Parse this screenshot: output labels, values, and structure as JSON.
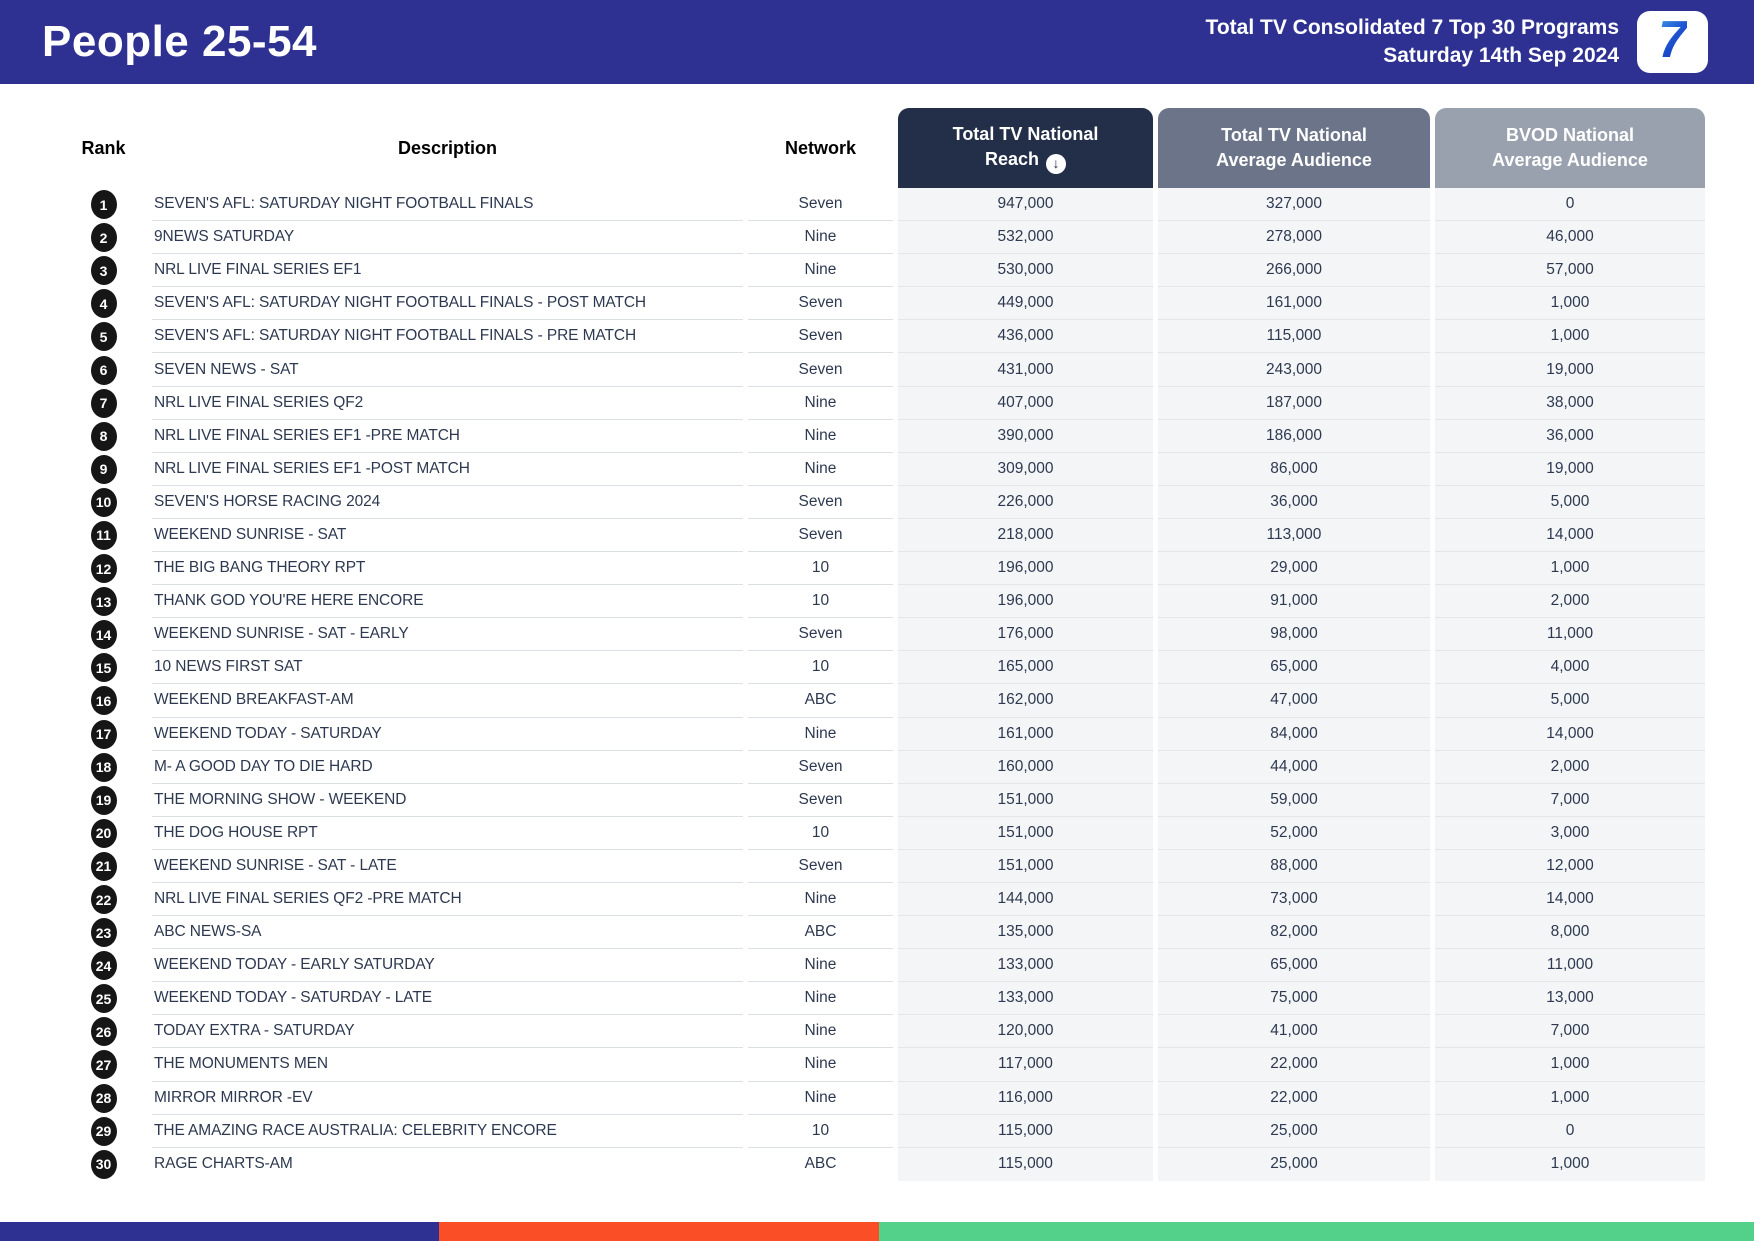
{
  "banner": {
    "title": "People 25-54",
    "subtitle_line1": "Total TV Consolidated 7 Top 30 Programs",
    "subtitle_line2": "Saturday 14th Sep 2024",
    "logo_text": "7"
  },
  "table": {
    "columns": {
      "rank": "Rank",
      "description": "Description",
      "network": "Network",
      "reach_line1": "Total TV National",
      "reach_line2": "Reach",
      "reach_sort_icon": "down-arrow-circle-icon",
      "tv_avg_line1": "Total TV National",
      "tv_avg_line2": "Average Audience",
      "bvod_line1": "BVOD National",
      "bvod_line2": "Average Audience"
    },
    "rows": [
      {
        "rank": "1",
        "description": "SEVEN'S AFL: SATURDAY NIGHT FOOTBALL FINALS",
        "network": "Seven",
        "reach": "947,000",
        "tv_avg": "327,000",
        "bvod_avg": "0"
      },
      {
        "rank": "2",
        "description": "9NEWS SATURDAY",
        "network": "Nine",
        "reach": "532,000",
        "tv_avg": "278,000",
        "bvod_avg": "46,000"
      },
      {
        "rank": "3",
        "description": "NRL LIVE FINAL SERIES EF1",
        "network": "Nine",
        "reach": "530,000",
        "tv_avg": "266,000",
        "bvod_avg": "57,000"
      },
      {
        "rank": "4",
        "description": "SEVEN'S AFL: SATURDAY NIGHT FOOTBALL FINALS - POST MATCH",
        "network": "Seven",
        "reach": "449,000",
        "tv_avg": "161,000",
        "bvod_avg": "1,000"
      },
      {
        "rank": "5",
        "description": "SEVEN'S AFL: SATURDAY NIGHT FOOTBALL FINALS - PRE MATCH",
        "network": "Seven",
        "reach": "436,000",
        "tv_avg": "115,000",
        "bvod_avg": "1,000"
      },
      {
        "rank": "6",
        "description": "SEVEN NEWS - SAT",
        "network": "Seven",
        "reach": "431,000",
        "tv_avg": "243,000",
        "bvod_avg": "19,000"
      },
      {
        "rank": "7",
        "description": "NRL LIVE FINAL SERIES QF2",
        "network": "Nine",
        "reach": "407,000",
        "tv_avg": "187,000",
        "bvod_avg": "38,000"
      },
      {
        "rank": "8",
        "description": "NRL LIVE FINAL SERIES EF1 -PRE MATCH",
        "network": "Nine",
        "reach": "390,000",
        "tv_avg": "186,000",
        "bvod_avg": "36,000"
      },
      {
        "rank": "9",
        "description": "NRL LIVE FINAL SERIES EF1 -POST MATCH",
        "network": "Nine",
        "reach": "309,000",
        "tv_avg": "86,000",
        "bvod_avg": "19,000"
      },
      {
        "rank": "10",
        "description": "SEVEN'S HORSE RACING 2024",
        "network": "Seven",
        "reach": "226,000",
        "tv_avg": "36,000",
        "bvod_avg": "5,000"
      },
      {
        "rank": "11",
        "description": "WEEKEND SUNRISE - SAT",
        "network": "Seven",
        "reach": "218,000",
        "tv_avg": "113,000",
        "bvod_avg": "14,000"
      },
      {
        "rank": "12",
        "description": "THE BIG BANG THEORY RPT",
        "network": "10",
        "reach": "196,000",
        "tv_avg": "29,000",
        "bvod_avg": "1,000"
      },
      {
        "rank": "13",
        "description": "THANK GOD YOU'RE HERE ENCORE",
        "network": "10",
        "reach": "196,000",
        "tv_avg": "91,000",
        "bvod_avg": "2,000"
      },
      {
        "rank": "14",
        "description": "WEEKEND SUNRISE - SAT - EARLY",
        "network": "Seven",
        "reach": "176,000",
        "tv_avg": "98,000",
        "bvod_avg": "11,000"
      },
      {
        "rank": "15",
        "description": "10 NEWS FIRST SAT",
        "network": "10",
        "reach": "165,000",
        "tv_avg": "65,000",
        "bvod_avg": "4,000"
      },
      {
        "rank": "16",
        "description": "WEEKEND BREAKFAST-AM",
        "network": "ABC",
        "reach": "162,000",
        "tv_avg": "47,000",
        "bvod_avg": "5,000"
      },
      {
        "rank": "17",
        "description": "WEEKEND TODAY - SATURDAY",
        "network": "Nine",
        "reach": "161,000",
        "tv_avg": "84,000",
        "bvod_avg": "14,000"
      },
      {
        "rank": "18",
        "description": "M- A GOOD DAY TO DIE HARD",
        "network": "Seven",
        "reach": "160,000",
        "tv_avg": "44,000",
        "bvod_avg": "2,000"
      },
      {
        "rank": "19",
        "description": "THE MORNING SHOW - WEEKEND",
        "network": "Seven",
        "reach": "151,000",
        "tv_avg": "59,000",
        "bvod_avg": "7,000"
      },
      {
        "rank": "20",
        "description": "THE DOG HOUSE RPT",
        "network": "10",
        "reach": "151,000",
        "tv_avg": "52,000",
        "bvod_avg": "3,000"
      },
      {
        "rank": "21",
        "description": "WEEKEND SUNRISE - SAT - LATE",
        "network": "Seven",
        "reach": "151,000",
        "tv_avg": "88,000",
        "bvod_avg": "12,000"
      },
      {
        "rank": "22",
        "description": "NRL LIVE FINAL SERIES QF2 -PRE MATCH",
        "network": "Nine",
        "reach": "144,000",
        "tv_avg": "73,000",
        "bvod_avg": "14,000"
      },
      {
        "rank": "23",
        "description": "ABC NEWS-SA",
        "network": "ABC",
        "reach": "135,000",
        "tv_avg": "82,000",
        "bvod_avg": "8,000"
      },
      {
        "rank": "24",
        "description": "WEEKEND TODAY - EARLY SATURDAY",
        "network": "Nine",
        "reach": "133,000",
        "tv_avg": "65,000",
        "bvod_avg": "11,000"
      },
      {
        "rank": "25",
        "description": "WEEKEND TODAY - SATURDAY - LATE",
        "network": "Nine",
        "reach": "133,000",
        "tv_avg": "75,000",
        "bvod_avg": "13,000"
      },
      {
        "rank": "26",
        "description": "TODAY EXTRA - SATURDAY",
        "network": "Nine",
        "reach": "120,000",
        "tv_avg": "41,000",
        "bvod_avg": "7,000"
      },
      {
        "rank": "27",
        "description": "THE MONUMENTS MEN",
        "network": "Nine",
        "reach": "117,000",
        "tv_avg": "22,000",
        "bvod_avg": "1,000"
      },
      {
        "rank": "28",
        "description": "MIRROR MIRROR -EV",
        "network": "Nine",
        "reach": "116,000",
        "tv_avg": "22,000",
        "bvod_avg": "1,000"
      },
      {
        "rank": "29",
        "description": "THE AMAZING RACE AUSTRALIA: CELEBRITY ENCORE",
        "network": "10",
        "reach": "115,000",
        "tv_avg": "25,000",
        "bvod_avg": "0"
      },
      {
        "rank": "30",
        "description": "RAGE CHARTS-AM",
        "network": "ABC",
        "reach": "115,000",
        "tv_avg": "25,000",
        "bvod_avg": "1,000"
      }
    ]
  },
  "footer": {
    "segment_colors": {
      "blue": "#2e3192",
      "orange": "#fa4f26",
      "green": "#53d08a"
    }
  },
  "colors": {
    "banner_background": "#2e3192",
    "header_reach_background": "#232f49",
    "header_tv_avg_background": "#6b7488",
    "header_bvod_background": "#9aa1ae",
    "body_text": "#2d3950",
    "numeric_band_background": "#f4f5f7"
  }
}
